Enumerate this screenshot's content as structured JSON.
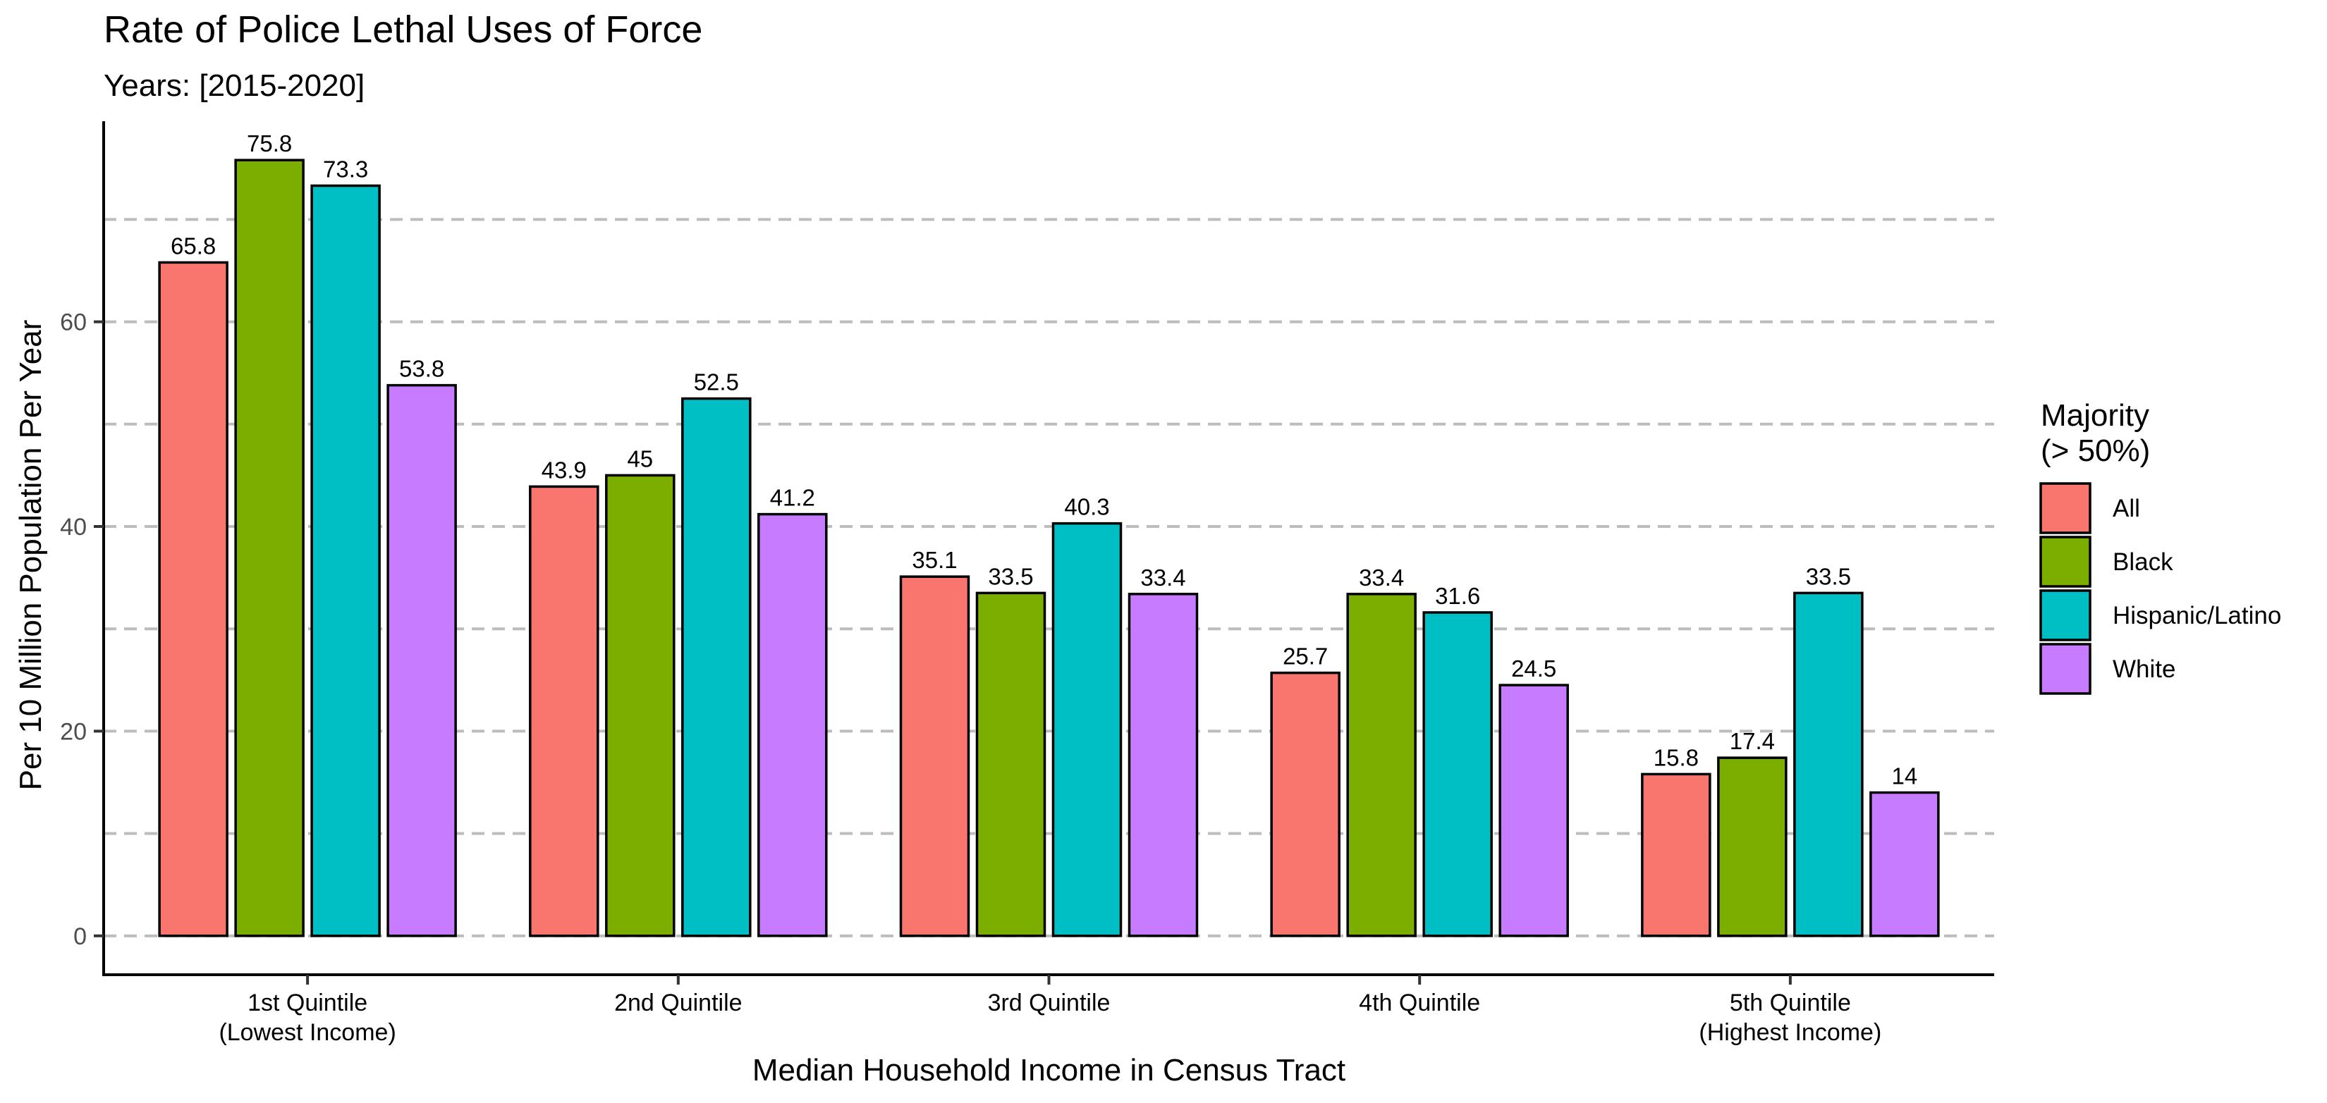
{
  "chart_data": {
    "type": "bar",
    "title": "Rate of Police Lethal Uses of Force",
    "subtitle": "Years: [2015-2020]",
    "xlabel": "Median Household Income in Census Tract",
    "ylabel": "Per 10 Million Population Per Year",
    "categories": [
      [
        "1st Quintile",
        "(Lowest Income)"
      ],
      [
        "2nd Quintile"
      ],
      [
        "3rd Quintile"
      ],
      [
        "4th Quintile"
      ],
      [
        "5th Quintile",
        "(Highest Income)"
      ]
    ],
    "series": [
      {
        "name": "All",
        "color": "#F8766D",
        "values": [
          65.8,
          43.9,
          35.1,
          25.7,
          15.8
        ],
        "labels": [
          "65.8",
          "43.9",
          "35.1",
          "25.7",
          "15.8"
        ]
      },
      {
        "name": "Black",
        "color": "#7CAE00",
        "values": [
          75.8,
          45,
          33.5,
          33.4,
          17.4
        ],
        "labels": [
          "75.8",
          "45",
          "33.5",
          "33.4",
          "17.4"
        ]
      },
      {
        "name": "Hispanic/Latino",
        "color": "#00BFC4",
        "values": [
          73.3,
          52.5,
          40.3,
          31.6,
          33.5
        ],
        "labels": [
          "73.3",
          "52.5",
          "40.3",
          "31.6",
          "33.5"
        ]
      },
      {
        "name": "White",
        "color": "#C77CFF",
        "values": [
          53.8,
          41.2,
          33.4,
          24.5,
          14
        ],
        "labels": [
          "53.8",
          "41.2",
          "33.4",
          "24.5",
          "14"
        ]
      }
    ],
    "ylim": [
      -3.8,
      79.6
    ],
    "yticks": [
      0,
      20,
      40,
      60
    ],
    "gridlines": [
      0,
      10,
      20,
      30,
      40,
      50,
      60,
      70
    ],
    "grid": "horizontal-dashed",
    "legend": {
      "title_lines": [
        "Majority",
        "(> 50%)"
      ],
      "placement": "right"
    }
  }
}
